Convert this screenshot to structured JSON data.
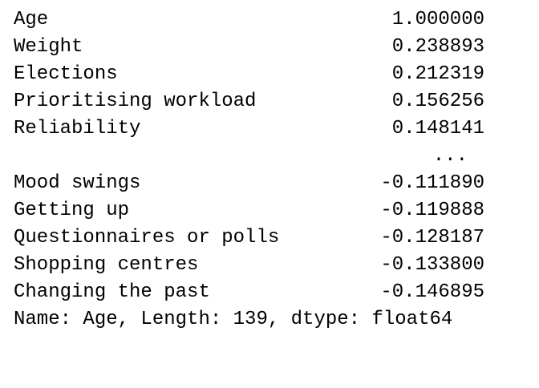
{
  "series_output": {
    "top_rows": [
      {
        "label": "Age",
        "value": "1.000000"
      },
      {
        "label": "Weight",
        "value": "0.238893"
      },
      {
        "label": "Elections",
        "value": "0.212319"
      },
      {
        "label": "Prioritising workload",
        "value": "0.156256"
      },
      {
        "label": "Reliability",
        "value": "0.148141"
      }
    ],
    "ellipsis": "...",
    "bottom_rows": [
      {
        "label": "Mood swings",
        "value": "-0.111890"
      },
      {
        "label": "Getting up",
        "value": "-0.119888"
      },
      {
        "label": "Questionnaires or polls",
        "value": "-0.128187"
      },
      {
        "label": "Shopping centres",
        "value": "-0.133800"
      },
      {
        "label": "Changing the past",
        "value": "-0.146895"
      }
    ],
    "footer": "Name: Age, Length: 139, dtype: float64"
  }
}
